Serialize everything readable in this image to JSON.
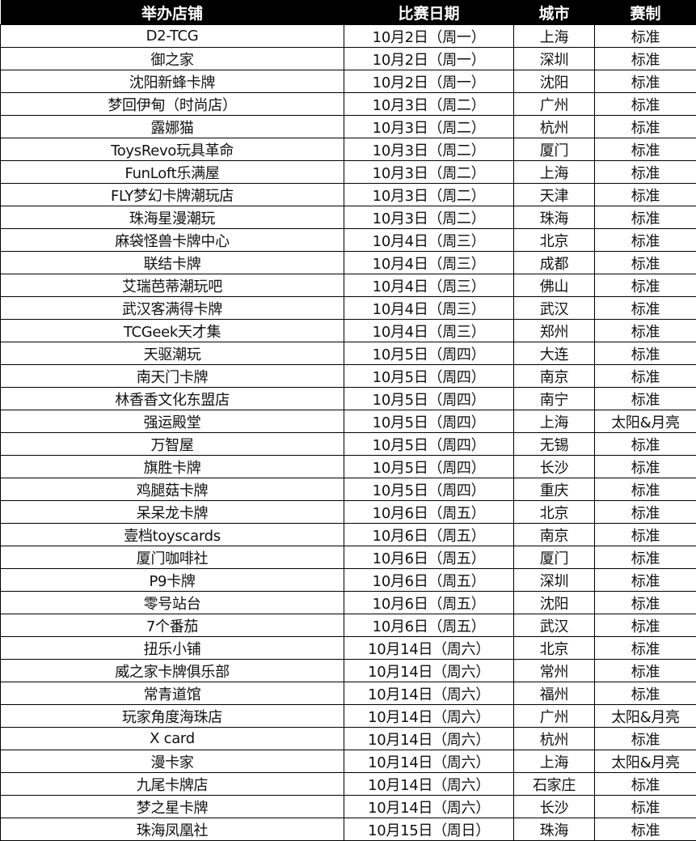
{
  "headers": [
    "举办店铺",
    "比赛日期",
    "城市",
    "赛制"
  ],
  "rows": [
    [
      "D2-TCG",
      "10月2日（周一）",
      "上海",
      "标准"
    ],
    [
      "御之家",
      "10月2日（周一）",
      "深圳",
      "标准"
    ],
    [
      "沈阳新蜂卡牌",
      "10月2日（周一）",
      "沈阳",
      "标准"
    ],
    [
      "梦回伊甸（时尚店）",
      "10月3日（周二）",
      "广州",
      "标准"
    ],
    [
      "露娜猫",
      "10月3日（周二）",
      "杭州",
      "标准"
    ],
    [
      "ToysRevo玩具革命",
      "10月3日（周二）",
      "厦门",
      "标准"
    ],
    [
      "FunLoft乐满屋",
      "10月3日（周二）",
      "上海",
      "标准"
    ],
    [
      "FLY梦幻卡牌潮玩店",
      "10月3日（周二）",
      "天津",
      "标准"
    ],
    [
      "珠海星漫潮玩",
      "10月3日（周二）",
      "珠海",
      "标准"
    ],
    [
      "麻袋怪兽卡牌中心",
      "10月4日（周三）",
      "北京",
      "标准"
    ],
    [
      "联结卡牌",
      "10月4日（周三）",
      "成都",
      "标准"
    ],
    [
      "艾瑞芭蒂潮玩吧",
      "10月4日（周三）",
      "佛山",
      "标准"
    ],
    [
      "武汉客满得卡牌",
      "10月4日（周三）",
      "武汉",
      "标准"
    ],
    [
      "TCGeek天才集",
      "10月4日（周三）",
      "郑州",
      "标准"
    ],
    [
      "天驱潮玩",
      "10月5日（周四）",
      "大连",
      "标准"
    ],
    [
      "南天门卡牌",
      "10月5日（周四）",
      "南京",
      "标准"
    ],
    [
      "林香香文化东盟店",
      "10月5日（周四）",
      "南宁",
      "标准"
    ],
    [
      "强运殿堂",
      "10月5日（周四）",
      "上海",
      "太阳&月亮"
    ],
    [
      "万智屋",
      "10月5日（周四）",
      "无锡",
      "标准"
    ],
    [
      "旗胜卡牌",
      "10月5日（周四）",
      "长沙",
      "标准"
    ],
    [
      "鸡腿菇卡牌",
      "10月5日（周四）",
      "重庆",
      "标准"
    ],
    [
      "呆呆龙卡牌",
      "10月6日（周五）",
      "北京",
      "标准"
    ],
    [
      "壹档toyscards",
      "10月6日（周五）",
      "南京",
      "标准"
    ],
    [
      "厦门咖啡社",
      "10月6日（周五）",
      "厦门",
      "标准"
    ],
    [
      "P9卡牌",
      "10月6日（周五）",
      "深圳",
      "标准"
    ],
    [
      "零号站台",
      "10月6日（周五）",
      "沈阳",
      "标准"
    ],
    [
      "7个番茄",
      "10月6日（周五）",
      "武汉",
      "标准"
    ],
    [
      "扭乐小铺",
      "10月14日（周六）",
      "北京",
      "标准"
    ],
    [
      "威之家卡牌俱乐部",
      "10月14日（周六）",
      "常州",
      "标准"
    ],
    [
      "常青道馆",
      "10月14日（周六）",
      "福州",
      "标准"
    ],
    [
      "玩家角度海珠店",
      "10月14日（周六）",
      "广州",
      "太阳&月亮"
    ],
    [
      "X card",
      "10月14日（周六）",
      "杭州",
      "标准"
    ],
    [
      "漫卡家",
      "10月14日（周六）",
      "上海",
      "太阳&月亮"
    ],
    [
      "九尾卡牌店",
      "10月14日（周六）",
      "石家庄",
      "标准"
    ],
    [
      "梦之星卡牌",
      "10月14日（周六）",
      "长沙",
      "标准"
    ],
    [
      "珠海凤凰社",
      "10月15日（周日）",
      "珠海",
      "标准"
    ]
  ]
}
